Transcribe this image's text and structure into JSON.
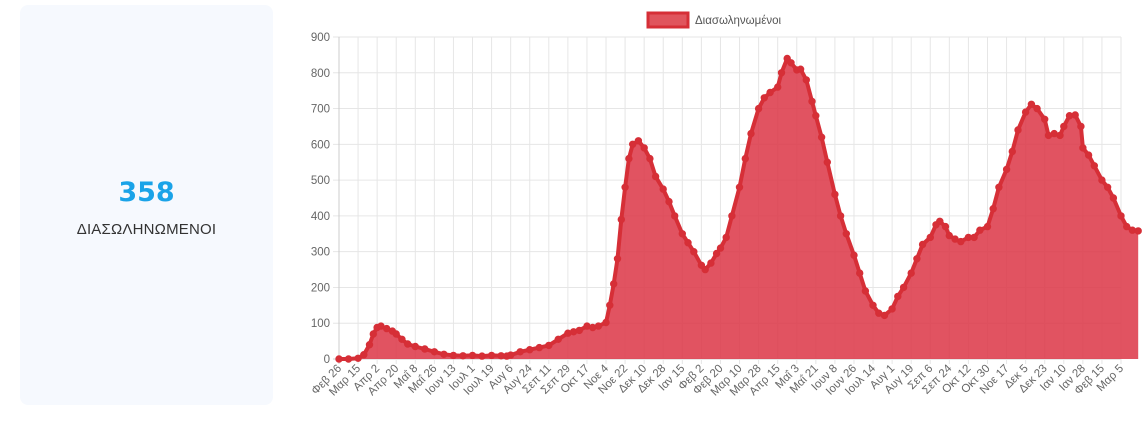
{
  "card": {
    "value": "358",
    "label": "ΔΙΑΣΩΛΗΝΩΜΕΝΟΙ"
  },
  "colors": {
    "accent": "#1aa3e8",
    "series_fill": "#dc3545",
    "series_line": "#d62f37"
  },
  "chart_data": {
    "type": "area",
    "title": "",
    "xlabel": "",
    "ylabel": "",
    "ylim": [
      0,
      900
    ],
    "yticks": [
      0,
      100,
      200,
      300,
      400,
      500,
      600,
      700,
      800,
      900
    ],
    "grid": true,
    "legend_position": "top",
    "categories": [
      "Φεβ 26",
      "Μαρ 15",
      "Απρ 2",
      "Απρ 20",
      "Μαΐ 8",
      "Μαΐ 26",
      "Ιουν 13",
      "Ιουλ 1",
      "Ιουλ 19",
      "Αυγ 6",
      "Αυγ 24",
      "Σεπ 11",
      "Σεπ 29",
      "Οκτ 17",
      "Νοε 4",
      "Νοε 22",
      "Δεκ 10",
      "Δεκ 28",
      "Ιαν 15",
      "Φεβ 2",
      "Φεβ 20",
      "Μαρ 10",
      "Μαρ 28",
      "Απρ 15",
      "Μαΐ 3",
      "Μαΐ 21",
      "Ιουν 8",
      "Ιουν 26",
      "Ιουλ 14",
      "Αυγ 1",
      "Αυγ 19",
      "Σεπ 6",
      "Σεπ 24",
      "Οκτ 12",
      "Οκτ 30",
      "Νοε 17",
      "Δεκ 5",
      "Δεκ 23",
      "Ιαν 10",
      "Ιαν 28",
      "Φεβ 15",
      "Μαρ 5"
    ],
    "series": [
      {
        "name": "Διασωληνωμένοι",
        "values": [
          [
            0,
            0
          ],
          [
            0.5,
            0
          ],
          [
            1,
            2
          ],
          [
            1.3,
            12
          ],
          [
            1.6,
            40
          ],
          [
            1.8,
            70
          ],
          [
            2,
            88
          ],
          [
            2.2,
            92
          ],
          [
            2.5,
            85
          ],
          [
            2.8,
            78
          ],
          [
            3,
            70
          ],
          [
            3.3,
            55
          ],
          [
            3.6,
            42
          ],
          [
            4,
            35
          ],
          [
            4.5,
            28
          ],
          [
            5,
            20
          ],
          [
            5.5,
            13
          ],
          [
            6,
            10
          ],
          [
            6.5,
            9
          ],
          [
            7,
            10
          ],
          [
            7.5,
            8
          ],
          [
            8,
            10
          ],
          [
            8.5,
            9
          ],
          [
            8.8,
            8
          ],
          [
            9,
            11
          ],
          [
            9.5,
            20
          ],
          [
            10,
            26
          ],
          [
            10.5,
            32
          ],
          [
            11,
            38
          ],
          [
            11.5,
            55
          ],
          [
            12,
            72
          ],
          [
            12.3,
            76
          ],
          [
            12.6,
            80
          ],
          [
            13,
            92
          ],
          [
            13.3,
            88
          ],
          [
            13.6,
            92
          ],
          [
            14,
            102
          ],
          [
            14.2,
            150
          ],
          [
            14.4,
            210
          ],
          [
            14.6,
            280
          ],
          [
            14.8,
            390
          ],
          [
            15,
            480
          ],
          [
            15.2,
            560
          ],
          [
            15.4,
            600
          ],
          [
            15.7,
            610
          ],
          [
            16,
            590
          ],
          [
            16.3,
            560
          ],
          [
            16.6,
            510
          ],
          [
            17,
            475
          ],
          [
            17.3,
            440
          ],
          [
            17.6,
            400
          ],
          [
            18,
            350
          ],
          [
            18.3,
            325
          ],
          [
            18.6,
            300
          ],
          [
            19,
            262
          ],
          [
            19.2,
            250
          ],
          [
            19.5,
            268
          ],
          [
            19.8,
            295
          ],
          [
            20,
            310
          ],
          [
            20.3,
            340
          ],
          [
            20.6,
            400
          ],
          [
            21,
            480
          ],
          [
            21.3,
            560
          ],
          [
            21.6,
            630
          ],
          [
            22,
            700
          ],
          [
            22.3,
            730
          ],
          [
            22.6,
            745
          ],
          [
            23,
            760
          ],
          [
            23.2,
            800
          ],
          [
            23.5,
            840
          ],
          [
            23.7,
            828
          ],
          [
            24,
            808
          ],
          [
            24.2,
            810
          ],
          [
            24.5,
            780
          ],
          [
            24.8,
            720
          ],
          [
            25,
            680
          ],
          [
            25.3,
            620
          ],
          [
            25.6,
            550
          ],
          [
            26,
            460
          ],
          [
            26.3,
            400
          ],
          [
            26.6,
            350
          ],
          [
            27,
            290
          ],
          [
            27.3,
            240
          ],
          [
            27.6,
            190
          ],
          [
            28,
            150
          ],
          [
            28.3,
            128
          ],
          [
            28.6,
            122
          ],
          [
            29,
            140
          ],
          [
            29.3,
            175
          ],
          [
            29.6,
            200
          ],
          [
            30,
            240
          ],
          [
            30.3,
            280
          ],
          [
            30.6,
            320
          ],
          [
            31,
            340
          ],
          [
            31.3,
            375
          ],
          [
            31.5,
            385
          ],
          [
            31.8,
            370
          ],
          [
            32,
            345
          ],
          [
            32.3,
            335
          ],
          [
            32.6,
            328
          ],
          [
            33,
            340
          ],
          [
            33.3,
            340
          ],
          [
            33.6,
            360
          ],
          [
            34,
            370
          ],
          [
            34.3,
            420
          ],
          [
            34.6,
            480
          ],
          [
            35,
            530
          ],
          [
            35.3,
            580
          ],
          [
            35.6,
            640
          ],
          [
            36,
            690
          ],
          [
            36.3,
            712
          ],
          [
            36.6,
            700
          ],
          [
            37,
            670
          ],
          [
            37.2,
            625
          ],
          [
            37.5,
            630
          ],
          [
            37.8,
            625
          ],
          [
            38,
            650
          ],
          [
            38.3,
            680
          ],
          [
            38.6,
            682
          ],
          [
            38.9,
            650
          ],
          [
            39,
            590
          ],
          [
            39.3,
            570
          ],
          [
            39.6,
            540
          ],
          [
            40,
            500
          ],
          [
            40.3,
            480
          ],
          [
            40.6,
            450
          ],
          [
            41,
            400
          ],
          [
            41.3,
            370
          ],
          [
            41.6,
            360
          ],
          [
            41.9,
            358
          ]
        ]
      }
    ]
  }
}
